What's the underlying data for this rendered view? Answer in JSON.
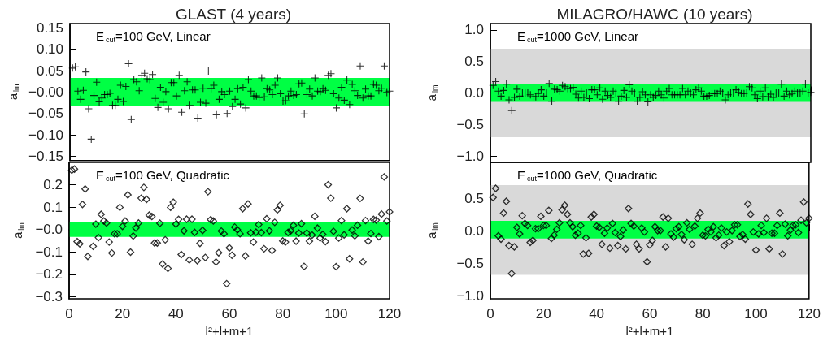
{
  "chart_data": [
    {
      "type": "scatter",
      "title": "GLAST (4 years)",
      "ylabel": "a$_{lm}$",
      "annotations": [
        "E$_{cut}$=100 GeV, Linear"
      ],
      "marker": "cross",
      "tick_labels": "y",
      "xlim": [
        0,
        120
      ],
      "xticks": [
        0,
        20,
        40,
        60,
        80,
        100,
        120
      ],
      "ylim": [
        -0.16,
        0.16
      ],
      "yticks": [
        {
          "value": -0.15,
          "label": "−0.15"
        },
        {
          "value": -0.1,
          "label": "−0.10"
        },
        {
          "value": -0.05,
          "label": "−0.05"
        },
        {
          "value": 0,
          "label": "−0.00"
        },
        {
          "value": 0.05,
          "label": "0.05"
        },
        {
          "value": 0.1,
          "label": "0.10"
        },
        {
          "value": 0.15,
          "label": "0.15"
        }
      ],
      "bands": [
        {
          "axis": "y",
          "from": -0.033,
          "to": 0.033,
          "color": "#00ff44"
        }
      ],
      "x": [
        1,
        2,
        3,
        4,
        5,
        6,
        7,
        8,
        9,
        10,
        11,
        12,
        13,
        14,
        15,
        16,
        17,
        18,
        19,
        20,
        21,
        22,
        23,
        24,
        25,
        26,
        27,
        28,
        29,
        30,
        31,
        32,
        33,
        34,
        35,
        36,
        37,
        38,
        39,
        40,
        41,
        42,
        43,
        44,
        45,
        46,
        47,
        48,
        49,
        50,
        51,
        52,
        53,
        54,
        55,
        56,
        57,
        58,
        59,
        60,
        61,
        62,
        63,
        64,
        65,
        66,
        67,
        68,
        69,
        70,
        71,
        72,
        73,
        74,
        75,
        76,
        77,
        78,
        79,
        80,
        81,
        82,
        83,
        84,
        85,
        86,
        87,
        88,
        89,
        90,
        91,
        92,
        93,
        94,
        95,
        96,
        97,
        98,
        99,
        100,
        101,
        102,
        103,
        104,
        105,
        106,
        107,
        108,
        109,
        110,
        111,
        112,
        113,
        114,
        115,
        116,
        117,
        118,
        119,
        120
      ],
      "series": [
        {
          "color": "#000000",
          "values": [
            0.056,
            0.059,
            0.002,
            -0.017,
            0.004,
            0.047,
            -0.039,
            -0.11,
            -0.008,
            0.023,
            -0.023,
            -0.014,
            -0.006,
            -0.006,
            -0.003,
            -0.031,
            -0.031,
            -0.017,
            0.016,
            -0.022,
            0.013,
            0.066,
            -0.064,
            0.029,
            0.024,
            0.003,
            0.039,
            0.044,
            0.031,
            0.029,
            0.041,
            -0.015,
            -0.036,
            0.011,
            -0.024,
            0.001,
            -0.039,
            0.022,
            0.022,
            -0.009,
            0.039,
            -0.047,
            0.003,
            0.024,
            -0.031,
            0.005,
            0.005,
            -0.061,
            -0.024,
            0.009,
            -0.026,
            0.049,
            0.008,
            0.016,
            -0.053,
            -0.017,
            0.001,
            -0.006,
            -0.05,
            0.002,
            -0.034,
            -0.017,
            0.008,
            -0.028,
            0.011,
            -0.037,
            0.029,
            0.002,
            -0.009,
            -0.009,
            -0.013,
            0.033,
            -0.011,
            0.008,
            0.005,
            -0.006,
            0.016,
            0.033,
            -0.004,
            -0.021,
            -0.02,
            -0.009,
            0.002,
            -0.008,
            -0.006,
            0.019,
            0.021,
            -0.051,
            -0.006,
            0.007,
            -0.009,
            0.033,
            0.002,
            0.001,
            0.008,
            0.004,
            0.039,
            0.043,
            -0.004,
            -0.037,
            -0.014,
            0.011,
            -0.019,
            0.028,
            -0.029,
            0.018,
            0.003,
            -0.008,
            0.061,
            -0.014,
            0.007,
            -0.009,
            -0.009,
            0.018,
            0.016,
            0.003,
            0.009,
            0.061,
            -0.001,
            0.002
          ]
        }
      ]
    },
    {
      "type": "scatter",
      "title": "MILAGRO/HAWC (10 years)",
      "ylabel": "a$_{lm}$",
      "annotations": [
        "E$_{cut}$=1000 GeV, Linear"
      ],
      "marker": "cross",
      "tick_labels": "y",
      "xlim": [
        0,
        120
      ],
      "xticks": [
        0,
        20,
        40,
        60,
        80,
        100,
        120
      ],
      "ylim": [
        -1.1,
        1.1
      ],
      "yticks": [
        {
          "value": -1,
          "label": "−1.0"
        },
        {
          "value": -0.5,
          "label": "−0.5"
        },
        {
          "value": 0,
          "label": "0.0"
        },
        {
          "value": 0.5,
          "label": "0.5"
        },
        {
          "value": 1,
          "label": "1.0"
        }
      ],
      "bands": [
        {
          "axis": "y",
          "from": -0.7,
          "to": 0.7,
          "color": "#d9d9d9"
        },
        {
          "axis": "y",
          "from": -0.14,
          "to": 0.14,
          "color": "#00ff44"
        }
      ],
      "x": [
        1,
        2,
        3,
        4,
        5,
        6,
        7,
        8,
        9,
        10,
        11,
        12,
        13,
        14,
        15,
        16,
        17,
        18,
        19,
        20,
        21,
        22,
        23,
        24,
        25,
        26,
        27,
        28,
        29,
        30,
        31,
        32,
        33,
        34,
        35,
        36,
        37,
        38,
        39,
        40,
        41,
        42,
        43,
        44,
        45,
        46,
        47,
        48,
        49,
        50,
        51,
        52,
        53,
        54,
        55,
        56,
        57,
        58,
        59,
        60,
        61,
        62,
        63,
        64,
        65,
        66,
        67,
        68,
        69,
        70,
        71,
        72,
        73,
        74,
        75,
        76,
        77,
        78,
        79,
        80,
        81,
        82,
        83,
        84,
        85,
        86,
        87,
        88,
        89,
        90,
        91,
        92,
        93,
        94,
        95,
        96,
        97,
        98,
        99,
        100,
        101,
        102,
        103,
        104,
        105,
        106,
        107,
        108,
        109,
        110,
        111,
        112,
        113,
        114,
        115,
        116,
        117,
        118,
        119,
        120
      ],
      "series": [
        {
          "color": "#000000",
          "values": [
            0.12,
            0.18,
            0.03,
            -0.05,
            0.04,
            0.14,
            -0.11,
            -0.28,
            -0.07,
            0.06,
            -0.05,
            0,
            0,
            0,
            -0.03,
            -0.06,
            -0.06,
            -0.01,
            0.05,
            -0.05,
            0,
            0.15,
            -0.13,
            0.06,
            0.05,
            0.03,
            0.12,
            0.1,
            0.07,
            0.07,
            0.09,
            -0.02,
            -0.08,
            0.03,
            -0.07,
            0,
            -0.09,
            0.05,
            0.05,
            -0.03,
            0.08,
            -0.1,
            0.03,
            -0.04,
            -0.07,
            0.03,
            0,
            -0.13,
            -0.05,
            0.04,
            -0.07,
            0.13,
            0.03,
            0,
            -0.13,
            -0.07,
            0.02,
            -0.03,
            -0.14,
            -0.03,
            -0.07,
            -0.04,
            0.03,
            -0.03,
            -0.08,
            0.03,
            0.07,
            -0.03,
            -0.03,
            -0.03,
            -0.03,
            0.07,
            -0.03,
            0.03,
            0,
            -0.03,
            0.05,
            0.08,
            0.03,
            -0.05,
            -0.05,
            -0.04,
            -0.01,
            -0.01,
            -0.01,
            0.03,
            0,
            -0.11,
            -0.03,
            0,
            0,
            0.05,
            0.01,
            -0.01,
            -0.01,
            0,
            0.1,
            0.08,
            -0.03,
            -0.09,
            0.03,
            -0.06,
            0.08,
            -0.06,
            -0.02,
            -0.07,
            0,
            0,
            0.14,
            -0.05,
            0.03,
            -0.03,
            -0.01,
            0.03,
            0,
            0,
            0.03,
            0.14,
            0,
            0.01
          ]
        }
      ]
    },
    {
      "type": "scatter",
      "ylabel": "a$_{lm}$",
      "xlabel": "l²+l+m+1",
      "annotations": [
        "E$_{cut}$=100 GeV, Quadratic"
      ],
      "marker": "diamond",
      "xlim": [
        0,
        120
      ],
      "xticks": [
        0,
        20,
        40,
        60,
        80,
        100,
        120
      ],
      "ylim": [
        -0.31,
        0.3
      ],
      "yticks": [
        {
          "value": -0.3,
          "label": "−0.3"
        },
        {
          "value": -0.2,
          "label": "−0.2"
        },
        {
          "value": -0.1,
          "label": "−0.1"
        },
        {
          "value": 0,
          "label": "−0.0"
        },
        {
          "value": 0.1,
          "label": "0.1"
        },
        {
          "value": 0.2,
          "label": "0.2"
        }
      ],
      "bands": [
        {
          "axis": "y",
          "from": -0.033,
          "to": 0.033,
          "color": "#00ff44"
        }
      ],
      "x": [
        1,
        2,
        3,
        4,
        5,
        6,
        7,
        8,
        9,
        10,
        11,
        12,
        13,
        14,
        15,
        16,
        17,
        18,
        19,
        20,
        21,
        22,
        23,
        24,
        25,
        26,
        27,
        28,
        29,
        30,
        31,
        32,
        33,
        34,
        35,
        36,
        37,
        38,
        39,
        40,
        41,
        42,
        43,
        44,
        45,
        46,
        47,
        48,
        49,
        50,
        51,
        52,
        53,
        54,
        55,
        56,
        57,
        58,
        59,
        60,
        61,
        62,
        63,
        64,
        65,
        66,
        67,
        68,
        69,
        70,
        71,
        72,
        73,
        74,
        75,
        76,
        77,
        78,
        79,
        80,
        81,
        82,
        83,
        84,
        85,
        86,
        87,
        88,
        89,
        90,
        91,
        92,
        93,
        94,
        95,
        96,
        97,
        98,
        99,
        100,
        101,
        102,
        103,
        104,
        105,
        106,
        107,
        108,
        109,
        110,
        111,
        112,
        113,
        114,
        115,
        116,
        117,
        118,
        119,
        120
      ],
      "series": [
        {
          "color": "#000000",
          "values": [
            0.265,
            0.27,
            -0.054,
            -0.064,
            0.112,
            0.181,
            -0.12,
            null,
            -0.075,
            0.024,
            -0.036,
            0.068,
            0.038,
            0.029,
            -0.056,
            -0.105,
            -0.019,
            -0.019,
            0.099,
            0.014,
            0.038,
            0.155,
            -0.101,
            -0.029,
            0.007,
            0.029,
            0.14,
            0.188,
            0.135,
            0.064,
            0.058,
            -0.06,
            -0.06,
            0.028,
            -0.154,
            -0.046,
            -0.174,
            0.099,
            0.122,
            0.024,
            0.045,
            -0.112,
            -0.006,
            0.046,
            -0.136,
            0.046,
            -0.013,
            -0.139,
            -0.062,
            -0.004,
            -0.125,
            0.169,
            0.044,
            0.038,
            -0.145,
            -0.104,
            -0.007,
            -0.019,
            -0.242,
            -0.082,
            -0.115,
            0.011,
            -0.001,
            -0.019,
            0.093,
            -0.118,
            0.114,
            -0.015,
            -0.056,
            -0.012,
            0.022,
            -0.014,
            -0.086,
            0.048,
            -0.006,
            -0.094,
            0.032,
            0.088,
            0.108,
            -0.051,
            -0.056,
            -0.013,
            -0.006,
            0.019,
            -0.052,
            -0.016,
            0.026,
            -0.165,
            -0.016,
            -0.052,
            -0.025,
            0.059,
            0.006,
            -0.038,
            -0.022,
            -0.054,
            0.2,
            0.14,
            -0.008,
            -0.166,
            -0.038,
            0.04,
            -0.024,
            0.093,
            -0.131,
            -0.002,
            -0.028,
            0.019,
            0.139,
            -0.145,
            0.04,
            -0.052,
            -0.018,
            0.045,
            0.042,
            -0.032,
            0.069,
            0.235,
            0.038,
            0.079
          ]
        }
      ]
    },
    {
      "type": "scatter",
      "ylabel": "a$_{lm}$",
      "xlabel": "l²+l+m+1",
      "annotations": [
        "E$_{cut}$=1000 GeV, Quadratic"
      ],
      "marker": "diamond",
      "xlim": [
        0,
        120
      ],
      "xticks": [
        0,
        20,
        40,
        60,
        80,
        100,
        120
      ],
      "ylim": [
        -1.05,
        1.05
      ],
      "yticks": [
        {
          "value": -1,
          "label": "−1.0"
        },
        {
          "value": -0.5,
          "label": "−0.5"
        },
        {
          "value": 0,
          "label": "0.0"
        },
        {
          "value": 0.5,
          "label": "0.5"
        },
        {
          "value": 1,
          "label": null
        }
      ],
      "bands": [
        {
          "axis": "y",
          "from": -0.68,
          "to": 0.7,
          "color": "#d9d9d9"
        },
        {
          "axis": "y",
          "from": -0.12,
          "to": 0.15,
          "color": "#00ff44"
        }
      ],
      "x": [
        1,
        2,
        3,
        4,
        5,
        6,
        7,
        8,
        9,
        10,
        11,
        12,
        13,
        14,
        15,
        16,
        17,
        18,
        19,
        20,
        21,
        22,
        23,
        24,
        25,
        26,
        27,
        28,
        29,
        30,
        31,
        32,
        33,
        34,
        35,
        36,
        37,
        38,
        39,
        40,
        41,
        42,
        43,
        44,
        45,
        46,
        47,
        48,
        49,
        50,
        51,
        52,
        53,
        54,
        55,
        56,
        57,
        58,
        59,
        60,
        61,
        62,
        63,
        64,
        65,
        66,
        67,
        68,
        69,
        70,
        71,
        72,
        73,
        74,
        75,
        76,
        77,
        78,
        79,
        80,
        81,
        82,
        83,
        84,
        85,
        86,
        87,
        88,
        89,
        90,
        91,
        92,
        93,
        94,
        95,
        96,
        97,
        98,
        99,
        100,
        101,
        102,
        103,
        104,
        105,
        106,
        107,
        108,
        109,
        110,
        111,
        112,
        113,
        114,
        115,
        116,
        117,
        118,
        119,
        120
      ],
      "series": [
        {
          "color": "#000000",
          "values": [
            0.51,
            0.65,
            -0.08,
            -0.13,
            0.27,
            0.45,
            -0.23,
            -0.66,
            -0.25,
            0.05,
            -0.05,
            0.23,
            0.11,
            0.08,
            -0.18,
            -0.15,
            0.03,
            0.03,
            0.22,
            0.08,
            0.08,
            0.31,
            -0.12,
            -0.07,
            0.02,
            0.12,
            0.32,
            0.39,
            0.25,
            0.12,
            0.06,
            -0.07,
            -0.04,
            0.08,
            -0.36,
            -0.11,
            -0.35,
            0.21,
            0.25,
            0.07,
            0.05,
            -0.21,
            -0.04,
            0.04,
            -0.27,
            0.11,
            -0.03,
            -0.23,
            -0.09,
            0.01,
            -0.28,
            0.34,
            0.11,
            0.07,
            -0.21,
            -0.28,
            0.04,
            -0.02,
            -0.48,
            -0.22,
            -0.15,
            0.06,
            0,
            0,
            0.21,
            -0.25,
            0.19,
            -0.05,
            -0.1,
            0.03,
            0.06,
            -0.06,
            -0.14,
            0.12,
            0.02,
            -0.21,
            0.07,
            0.19,
            0.27,
            -0.07,
            -0.08,
            0.02,
            -0.02,
            0.06,
            -0.11,
            -0.07,
            0.04,
            -0.23,
            -0.02,
            -0.17,
            0,
            0.09,
            0.09,
            -0.09,
            -0.06,
            -0.13,
            0.41,
            0.25,
            -0.02,
            -0.3,
            -0.05,
            0.08,
            -0.03,
            0.19,
            -0.28,
            -0.04,
            -0.04,
            0.08,
            0.27,
            -0.36,
            0.1,
            -0.08,
            0.01,
            0.08,
            0.09,
            -0.03,
            0.16,
            0.44,
            0.12,
            0.19
          ]
        }
      ]
    }
  ]
}
